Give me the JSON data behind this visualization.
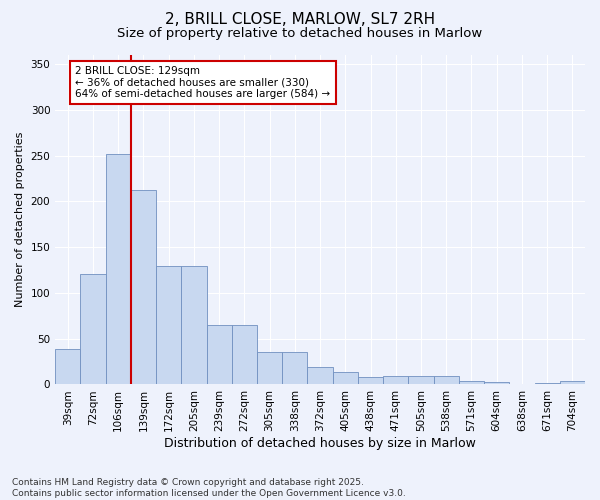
{
  "title": "2, BRILL CLOSE, MARLOW, SL7 2RH",
  "subtitle": "Size of property relative to detached houses in Marlow",
  "xlabel": "Distribution of detached houses by size in Marlow",
  "ylabel": "Number of detached properties",
  "bar_values": [
    39,
    121,
    252,
    212,
    129,
    129,
    65,
    65,
    35,
    35,
    19,
    14,
    8,
    9,
    9,
    9,
    4,
    3,
    0,
    2,
    4
  ],
  "categories": [
    "39sqm",
    "72sqm",
    "106sqm",
    "139sqm",
    "172sqm",
    "205sqm",
    "239sqm",
    "272sqm",
    "305sqm",
    "338sqm",
    "372sqm",
    "405sqm",
    "438sqm",
    "471sqm",
    "505sqm",
    "538sqm",
    "571sqm",
    "604sqm",
    "638sqm",
    "671sqm",
    "704sqm"
  ],
  "bar_color": "#c8d8f0",
  "bar_edge_color": "#7090c0",
  "annotation_text": "2 BRILL CLOSE: 129sqm\n← 36% of detached houses are smaller (330)\n64% of semi-detached houses are larger (584) →",
  "annotation_box_color": "#ffffff",
  "annotation_box_edge": "#cc0000",
  "red_line_color": "#cc0000",
  "ylim": [
    0,
    360
  ],
  "yticks": [
    0,
    50,
    100,
    150,
    200,
    250,
    300,
    350
  ],
  "background_color": "#eef2fc",
  "grid_color": "#ffffff",
  "footnote": "Contains HM Land Registry data © Crown copyright and database right 2025.\nContains public sector information licensed under the Open Government Licence v3.0.",
  "title_fontsize": 11,
  "subtitle_fontsize": 9.5,
  "xlabel_fontsize": 9,
  "ylabel_fontsize": 8,
  "tick_fontsize": 7.5,
  "annotation_fontsize": 7.5,
  "footnote_fontsize": 6.5
}
